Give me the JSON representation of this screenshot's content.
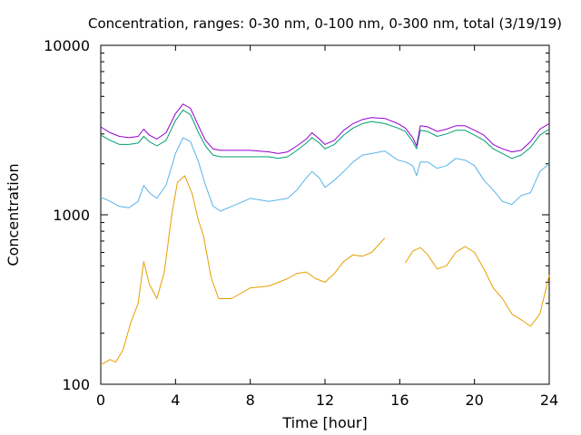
{
  "chart_data": {
    "type": "line",
    "title": "Concentration, ranges: 0-30 nm, 0-100 nm, 0-300 nm, total (3/19/19)",
    "xlabel": "Time [hour]",
    "ylabel": "Concentration",
    "xlim": [
      0,
      24
    ],
    "ylim": [
      100,
      10000
    ],
    "yscale": "log",
    "grid": false,
    "xticks": [
      0,
      4,
      8,
      12,
      16,
      20,
      24
    ],
    "xtick_labels": [
      "0",
      "4",
      "8",
      "12",
      "16",
      "20",
      "24"
    ],
    "yticks": [
      100,
      1000,
      10000
    ],
    "ytick_labels": [
      "100",
      "1000",
      "10000"
    ],
    "series": [
      {
        "range": "0-30 nm",
        "color": "#e69f00",
        "x": [
          0,
          0.5,
          0.8,
          1.2,
          1.6,
          2.0,
          2.3,
          2.6,
          3.0,
          3.4,
          3.8,
          4.1,
          4.5,
          4.9,
          5.2,
          5.5,
          5.9,
          6.3,
          7,
          8,
          9,
          10,
          10.5,
          11,
          11.5,
          12,
          12.5,
          13,
          13.5,
          14,
          14.5,
          15.2,
          15.9,
          16.3,
          16.7,
          17.1,
          17.5,
          18,
          18.5,
          19,
          19.5,
          20,
          20.5,
          21,
          21.5,
          22,
          22.5,
          23,
          23.5,
          24
        ],
        "y": [
          130,
          140,
          135,
          160,
          230,
          300,
          530,
          390,
          320,
          460,
          1000,
          1550,
          1700,
          1320,
          950,
          750,
          430,
          320,
          320,
          370,
          380,
          420,
          450,
          460,
          420,
          400,
          450,
          530,
          580,
          570,
          600,
          730,
          null,
          520,
          610,
          640,
          580,
          480,
          500,
          600,
          650,
          600,
          480,
          370,
          320,
          260,
          240,
          220,
          260,
          440
        ]
      },
      {
        "range": "0-100 nm",
        "color": "#56b4e9",
        "x": [
          0,
          0.5,
          1.0,
          1.5,
          2.0,
          2.3,
          2.6,
          3.0,
          3.5,
          4.0,
          4.4,
          4.8,
          5.2,
          5.6,
          6.0,
          6.4,
          7,
          8,
          9,
          10,
          10.5,
          11,
          11.3,
          11.7,
          12,
          12.5,
          13,
          13.5,
          14,
          14.5,
          15.2,
          15.9,
          16.3,
          16.7,
          16.9,
          17.1,
          17.5,
          18,
          18.5,
          19,
          19.5,
          20,
          20.5,
          21,
          21.5,
          22,
          22.5,
          23,
          23.5,
          24
        ],
        "y": [
          1270,
          1200,
          1120,
          1100,
          1200,
          1490,
          1350,
          1250,
          1500,
          2300,
          2850,
          2700,
          2100,
          1500,
          1130,
          1050,
          1120,
          1250,
          1200,
          1250,
          1400,
          1650,
          1800,
          1650,
          1450,
          1600,
          1800,
          2050,
          2250,
          2300,
          2380,
          2100,
          2050,
          1950,
          1700,
          2050,
          2050,
          1880,
          1950,
          2150,
          2100,
          1950,
          1600,
          1400,
          1200,
          1150,
          1300,
          1350,
          1800,
          2000
        ]
      },
      {
        "range": "0-300 nm",
        "color": "#009e73",
        "x": [
          0,
          0.5,
          1.0,
          1.5,
          2.0,
          2.3,
          2.6,
          3.0,
          3.5,
          4.0,
          4.4,
          4.8,
          5.2,
          5.6,
          6.0,
          6.4,
          7,
          8,
          9,
          9.5,
          10,
          10.5,
          11,
          11.3,
          11.7,
          12,
          12.5,
          13,
          13.5,
          14,
          14.5,
          15.2,
          15.9,
          16.3,
          16.7,
          16.9,
          17.1,
          17.5,
          18,
          18.5,
          19,
          19.5,
          20,
          20.5,
          21,
          21.5,
          22,
          22.5,
          23,
          23.5,
          24
        ],
        "y": [
          2950,
          2750,
          2600,
          2600,
          2650,
          2900,
          2700,
          2550,
          2750,
          3600,
          4150,
          3900,
          3100,
          2550,
          2250,
          2200,
          2200,
          2200,
          2200,
          2150,
          2200,
          2400,
          2650,
          2850,
          2650,
          2450,
          2600,
          2950,
          3250,
          3450,
          3550,
          3450,
          3250,
          3100,
          2700,
          2450,
          3150,
          3100,
          2900,
          3000,
          3150,
          3150,
          2950,
          2750,
          2450,
          2300,
          2150,
          2250,
          2500,
          2950,
          3200
        ]
      },
      {
        "range": "total",
        "color": "#9400d3",
        "x": [
          0,
          0.5,
          1.0,
          1.5,
          2.0,
          2.3,
          2.6,
          3.0,
          3.5,
          4.0,
          4.4,
          4.8,
          5.2,
          5.6,
          6.0,
          6.4,
          7,
          8,
          9,
          9.5,
          10,
          10.5,
          11,
          11.3,
          11.7,
          12,
          12.5,
          13,
          13.5,
          14,
          14.5,
          15.2,
          15.9,
          16.3,
          16.7,
          16.9,
          17.1,
          17.5,
          18,
          18.5,
          19,
          19.5,
          20,
          20.5,
          21,
          21.5,
          22,
          22.5,
          23,
          23.5,
          24
        ],
        "y": [
          3300,
          3050,
          2900,
          2850,
          2900,
          3200,
          2950,
          2800,
          3050,
          3950,
          4500,
          4250,
          3400,
          2750,
          2450,
          2400,
          2400,
          2400,
          2350,
          2300,
          2350,
          2550,
          2800,
          3050,
          2800,
          2600,
          2750,
          3150,
          3450,
          3650,
          3750,
          3700,
          3450,
          3250,
          2850,
          2550,
          3350,
          3300,
          3100,
          3200,
          3350,
          3350,
          3150,
          2950,
          2600,
          2450,
          2350,
          2400,
          2700,
          3200,
          3450
        ]
      }
    ]
  }
}
